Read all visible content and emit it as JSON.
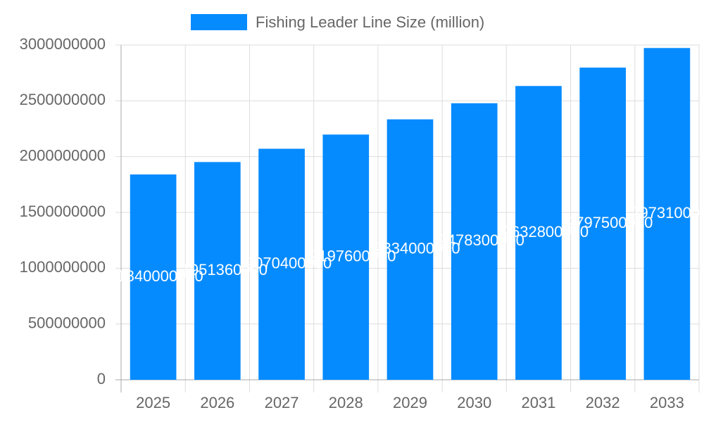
{
  "chart_data": {
    "type": "bar",
    "categories": [
      "2025",
      "2026",
      "2027",
      "2028",
      "2029",
      "2030",
      "2031",
      "2032",
      "2033"
    ],
    "series": [
      {
        "name": "Fishing Leader Line Size (million)",
        "color": "#068bff",
        "values": [
          1840000000,
          1951360000,
          2070400000,
          2197600000,
          2334000000,
          2478300000,
          2632800000,
          2797500000,
          2973100000
        ]
      }
    ],
    "ylim": [
      0,
      3000000000
    ],
    "yticks": [
      0,
      500000000,
      1000000000,
      1500000000,
      2000000000,
      2500000000,
      3000000000
    ],
    "grid": true,
    "legend": "top"
  }
}
